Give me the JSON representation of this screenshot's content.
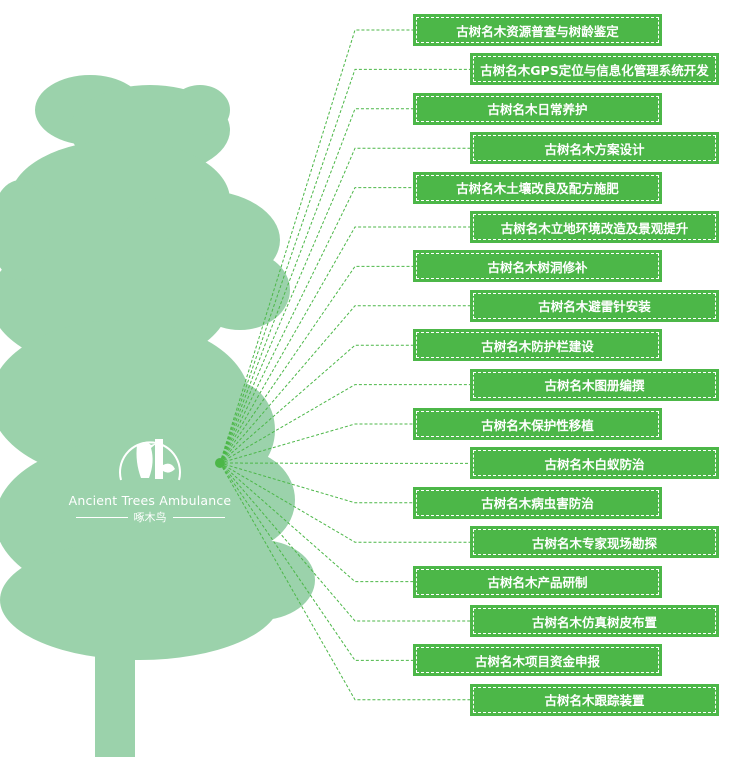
{
  "colors": {
    "tree": "#9bd2ab",
    "box": "#4cb748",
    "connector": "#4cb748"
  },
  "logo": {
    "name_en": "Ancient Trees Ambulance",
    "name_cn": "啄木鸟",
    "icon": "woodpecker-on-tree-icon"
  },
  "services": [
    "古树名木资源普查与树龄鉴定",
    "古树名木GPS定位与信息化管理系统开发",
    "古树名木日常养护",
    "古树名木方案设计",
    "古树名木土壤改良及配方施肥",
    "古树名木立地环境改造及景观提升",
    "古树名木树洞修补",
    "古树名木避雷针安装",
    "古树名木防护栏建设",
    "古树名木图册编撰",
    "古树名木保护性移植",
    "古树名木白蚁防治",
    "古树名木病虫害防治",
    "古树名木专家现场勘探",
    "古树名木产品研制",
    "古树名木仿真树皮布置",
    "古树名木项目资金申报",
    "古树名木跟踪装置"
  ]
}
